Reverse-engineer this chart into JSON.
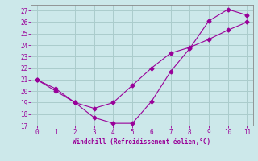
{
  "xlabel": "Windchill (Refroidissement éolien,°C)",
  "x": [
    0,
    1,
    2,
    3,
    4,
    5,
    6,
    7,
    8,
    9,
    10,
    11
  ],
  "line1_y": [
    21,
    20,
    19,
    17.7,
    17.2,
    17.2,
    19.1,
    21.7,
    23.7,
    26.1,
    27.1,
    26.6
  ],
  "line2_y": [
    21,
    20.2,
    19,
    18.5,
    19.0,
    20.5,
    22.0,
    23.3,
    23.8,
    24.5,
    25.3,
    26.0
  ],
  "line_color": "#990099",
  "marker": "D",
  "marker_size": 2.5,
  "bg_color": "#cce8ea",
  "grid_color": "#aacccc",
  "ylim": [
    17,
    27.5
  ],
  "xlim": [
    -0.3,
    11.3
  ],
  "yticks": [
    17,
    18,
    19,
    20,
    21,
    22,
    23,
    24,
    25,
    26,
    27
  ],
  "xticks": [
    0,
    1,
    2,
    3,
    4,
    5,
    6,
    7,
    8,
    9,
    10,
    11
  ]
}
